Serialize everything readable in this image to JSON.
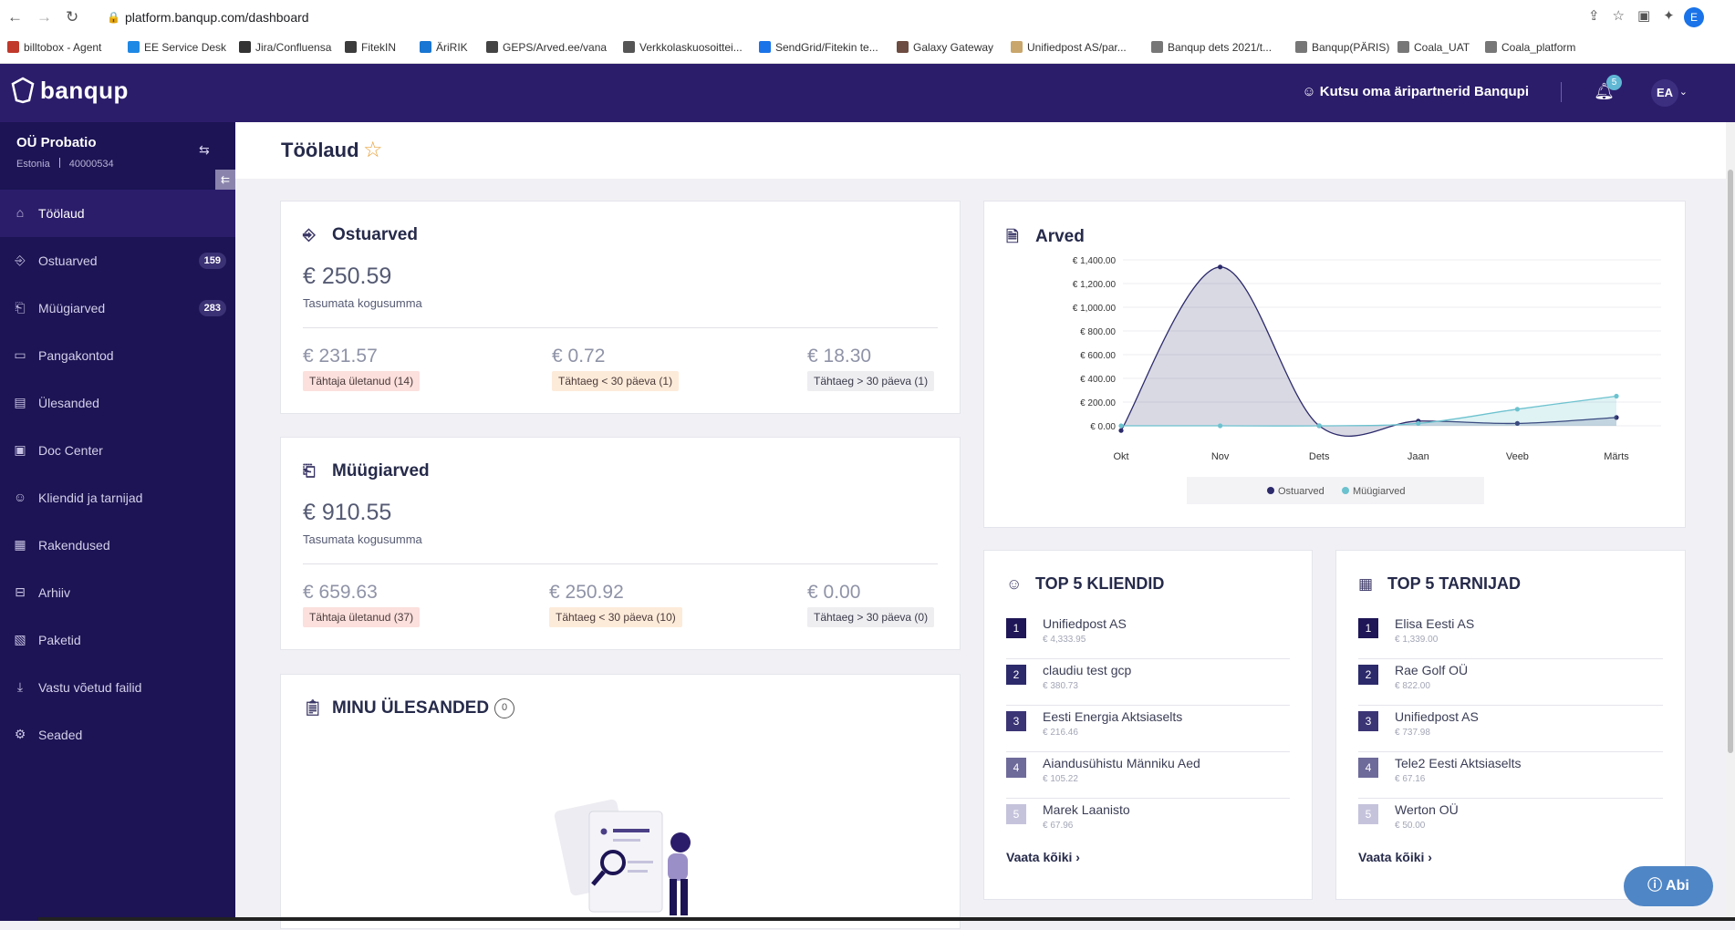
{
  "browser": {
    "url": "platform.banqup.com/dashboard",
    "bookmarks": [
      "billtobox - Agent",
      "EE Service Desk",
      "Jira/Confluensa",
      "FitekIN",
      "ÄriRIK",
      "GEPS/Arved.ee/vana",
      "Verkkolaskuosoittei...",
      "SendGrid/Fitekin te...",
      "Galaxy Gateway",
      "Unifiedpost AS/par...",
      "Banqup dets 2021/t...",
      "Banqup(PÄRIS)",
      "Coala_UAT",
      "Coala_platform"
    ],
    "profile_initial": "E",
    "colors": {
      "bookmark_icons": [
        "#c0392b",
        "#1e88e5",
        "#333333",
        "#3c3c3c",
        "#1976d2",
        "#444444",
        "#555555",
        "#1a73e8",
        "#6d4c41",
        "#c9a66b",
        "#777777",
        "#777777",
        "#777777",
        "#777777"
      ]
    }
  },
  "header": {
    "logo": "banqup",
    "invite": "Kutsu oma äripartnerid Banqupi",
    "notifications": "5",
    "avatar": "EA"
  },
  "sidebar": {
    "company": "OÜ Probatio",
    "country": "Estonia",
    "reg_code": "40000534",
    "items": [
      {
        "label": "Töölaud",
        "icon": "home-icon",
        "badge": ""
      },
      {
        "label": "Ostuarved",
        "icon": "purchase-invoice-icon",
        "badge": "159"
      },
      {
        "label": "Müügiarved",
        "icon": "sales-invoice-icon",
        "badge": "283"
      },
      {
        "label": "Pangakontod",
        "icon": "bank-card-icon",
        "badge": ""
      },
      {
        "label": "Ülesanded",
        "icon": "clipboard-icon",
        "badge": ""
      },
      {
        "label": "Doc Center",
        "icon": "doc-center-icon",
        "badge": ""
      },
      {
        "label": "Kliendid ja tarnijad",
        "icon": "people-icon",
        "badge": ""
      },
      {
        "label": "Rakendused",
        "icon": "apps-icon",
        "badge": ""
      },
      {
        "label": "Arhiiv",
        "icon": "archive-icon",
        "badge": ""
      },
      {
        "label": "Paketid",
        "icon": "package-icon",
        "badge": ""
      },
      {
        "label": "Vastu võetud failid",
        "icon": "download-icon",
        "badge": ""
      },
      {
        "label": "Seaded",
        "icon": "gear-icon",
        "badge": ""
      }
    ]
  },
  "page": {
    "title": "Töölaud"
  },
  "ostuarved": {
    "title": "Ostuarved",
    "total": "€ 250.59",
    "total_label": "Tasumata kogusumma",
    "overdue": "€ 231.57",
    "overdue_label": "Tähtaja ületanud (14)",
    "due_soon": "€ 0.72",
    "due_soon_label": "Tähtaeg < 30 päeva (1)",
    "due_later": "€ 18.30",
    "due_later_label": "Tähtaeg > 30 päeva (1)"
  },
  "myygiarved": {
    "title": "Müügiarved",
    "total": "€ 910.55",
    "total_label": "Tasumata kogusumma",
    "overdue": "€ 659.63",
    "overdue_label": "Tähtaja ületanud (37)",
    "due_soon": "€ 250.92",
    "due_soon_label": "Tähtaeg < 30 päeva (10)",
    "due_later": "€ 0.00",
    "due_later_label": "Tähtaeg > 30 päeva (0)"
  },
  "tasks": {
    "title": "MINU ÜLESANDED",
    "count": "0"
  },
  "chart_title": "Arved",
  "chart_data": {
    "type": "area",
    "title": "Arved",
    "categories": [
      "Okt",
      "Nov",
      "Dets",
      "Jaan",
      "Veeb",
      "Märts"
    ],
    "yticks": [
      "€ 0.00",
      "€ 200.00",
      "€ 400.00",
      "€ 600.00",
      "€ 800.00",
      "€ 1,000.00",
      "€ 1,200.00",
      "€ 1,400.00"
    ],
    "ylim": [
      0,
      1400
    ],
    "legend_position": "bottom",
    "series": [
      {
        "name": "Ostuarved",
        "color": "#2c2a6b",
        "values": [
          -40,
          1340,
          0,
          40,
          20,
          70
        ]
      },
      {
        "name": "Müügiarved",
        "color": "#6cc2cf",
        "values": [
          0,
          0,
          0,
          20,
          140,
          250
        ]
      }
    ]
  },
  "top_clients": {
    "title": "TOP 5 KLIENDID",
    "items": [
      {
        "name": "Unifiedpost AS",
        "value": "€ 4,333.95"
      },
      {
        "name": "claudiu test gcp",
        "value": "€ 380.73"
      },
      {
        "name": "Eesti Energia Aktsiaselts",
        "value": "€ 216.46"
      },
      {
        "name": "Aiandusühistu Männiku Aed",
        "value": "€ 105.22"
      },
      {
        "name": "Marek Laanisto",
        "value": "€ 67.96"
      }
    ],
    "see_all": "Vaata kõiki"
  },
  "top_suppliers": {
    "title": "TOP 5 TARNIJAD",
    "items": [
      {
        "name": "Elisa Eesti AS",
        "value": "€ 1,339.00"
      },
      {
        "name": "Rae Golf OÜ",
        "value": "€ 822.00"
      },
      {
        "name": "Unifiedpost AS",
        "value": "€ 737.98"
      },
      {
        "name": "Tele2 Eesti Aktsiaselts",
        "value": "€ 67.16"
      },
      {
        "name": "Werton OÜ",
        "value": "€ 50.00"
      }
    ],
    "see_all": "Vaata kõiki"
  },
  "rank_colors": [
    "#1e1656",
    "#2c2a6b",
    "#3b3575",
    "#6e6a9a",
    "#c5c3dc"
  ],
  "help": "Abi"
}
